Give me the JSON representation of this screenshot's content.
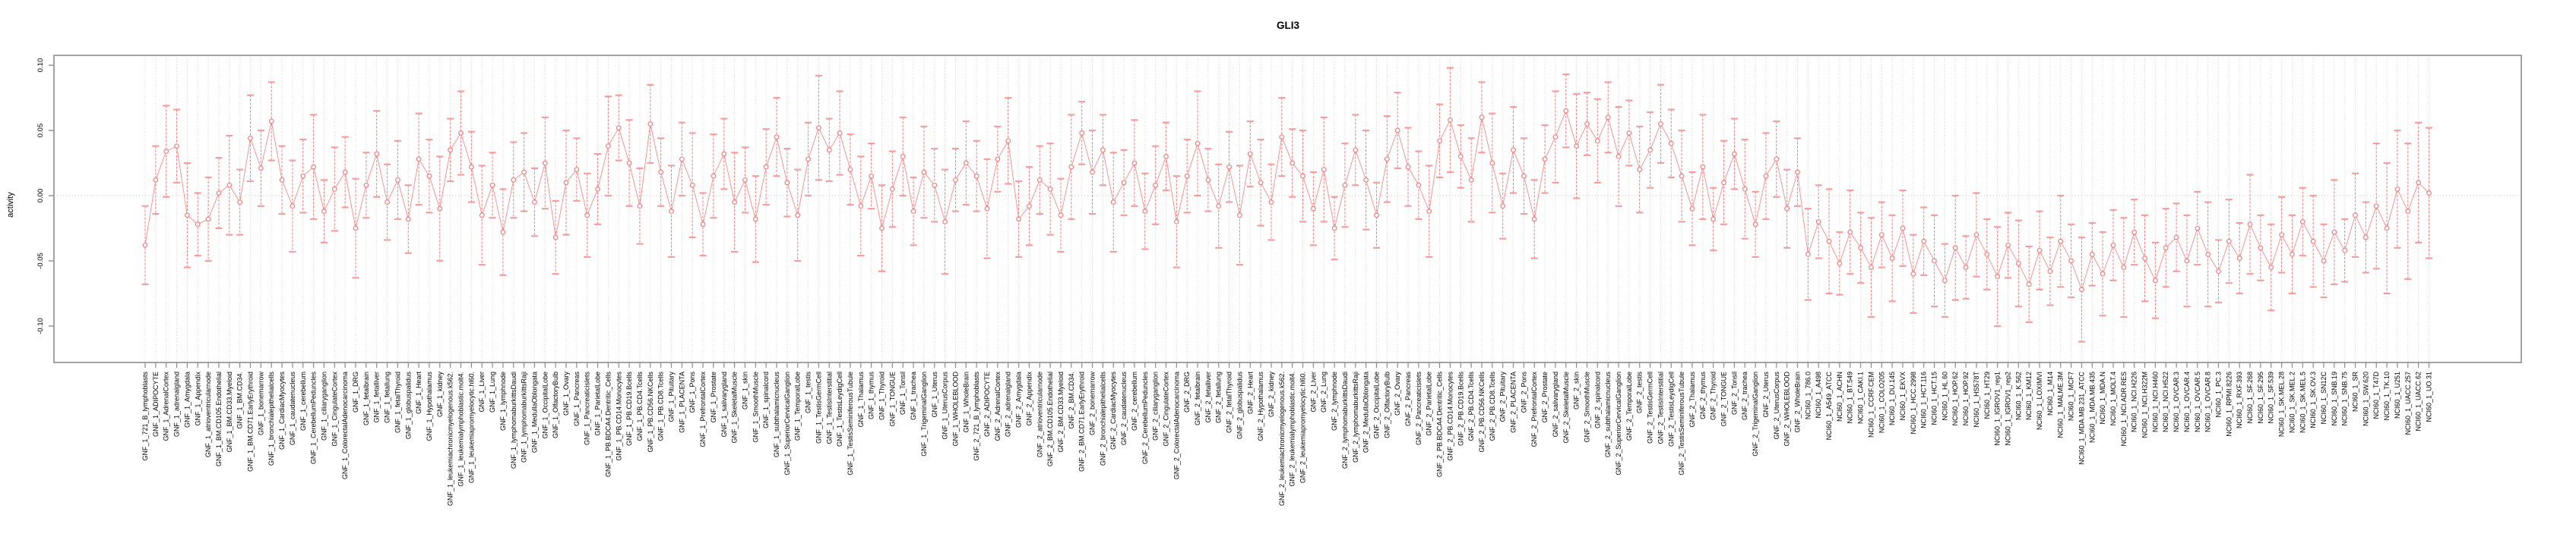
{
  "title": "GLI3",
  "y_axis": {
    "label": "activity",
    "tick_labels": [
      "0.10",
      "0.05",
      "0.00",
      "-0.05",
      "-0.10"
    ],
    "tick_values": [
      0.1,
      0.05,
      0.0,
      -0.05,
      -0.1
    ]
  },
  "colors": {
    "series": "#f08080",
    "caps": "#f29e9e",
    "grid": "#d8d8d8",
    "zero_line": "#c9c9c9",
    "box": "#8c8c8c",
    "tick": "#8c8c8c",
    "text": "#000000"
  },
  "chart_data": {
    "type": "line",
    "subtype": "points-with-error-bars",
    "title": "GLI3",
    "xlabel": "",
    "ylabel": "activity",
    "ylim": [
      -0.128,
      0.108
    ],
    "yticks": [
      0.1,
      0.05,
      0.0,
      -0.05,
      -0.1
    ],
    "grid": "vertical dotted gridline at every category; dotted horizontal line at 0",
    "legend_position": "none",
    "marker": "open-circle",
    "series_color": "#f08080",
    "n_categories": 218,
    "categories": [
      "GNF_1_721_B_lymphoblasts",
      "GNF_1_ADIPOCYTE",
      "GNF_1_AdrenalCortex",
      "GNF_1_adrenalgland",
      "GNF_1_Amygdala",
      "GNF_1_Appendix",
      "GNF_1_atrioventricularnode",
      "GNF_1_BM.CD105.Endothelial",
      "GNF_1_BM.CD33.Myeloid",
      "GNF_1_BM.CD34.",
      "GNF_1_BM.CD71.EarlyErythroid",
      "GNF_1_bonemarrow",
      "GNF_1_bronchialepithelialcells",
      "GNF_1_CardiacMyocytes",
      "GNF_1_caudatenucleus",
      "GNF_1_cerebellum",
      "GNF_1_CerebellumPeduncles",
      "GNF_1_ciliaryganglion",
      "GNF_1_CingulateCortex",
      "GNF_1_ColorectalAdenocarcinoma",
      "GNF_1_DRG",
      "GNF_1_fetalbrain",
      "GNF_1_fetalliver",
      "GNF_1_fetallung",
      "GNF_1_fetalThyroid",
      "GNF_1_globuspalidus",
      "GNF_1_Heart",
      "GNF_1_Hypothalamus",
      "GNF_1_kidney",
      "GNF_1_leukemiachronicmyelogenous.k562.",
      "GNF_1_leukemialymphoblastic.molt4.",
      "GNF_1_leukemiapromyelocytic.hl60.",
      "GNF_1_Liver",
      "GNF_1_Lung",
      "GNF_1_lymphnode",
      "GNF_1_lymphomaburkittsDaudi",
      "GNF_1_lymphomaburkittsRaji",
      "GNF_1_MedullaOblongata",
      "GNF_1_OccipitalLobe",
      "GNF_1_OlfactoryBulb",
      "GNF_1_Ovary",
      "GNF_1_Pancreas",
      "GNF_1_Pancreaticislets",
      "GNF_1_ParietalLobe",
      "GNF_1_PB.BDCA4.Dentritic_Cells",
      "GNF_1_PB.CD14.Monocytes",
      "GNF_1_PB.CD19.Bcells",
      "GNF_1_PB.CD4.Tcells",
      "GNF_1_PB.CD56.NKCells",
      "GNF_1_PB.CD8.Tcells",
      "GNF_1_Pituitary",
      "GNF_1_PLACENTA",
      "GNF_1_Pons",
      "GNF_1_PrefrontalCortex",
      "GNF_1_Prostate",
      "GNF_1_salivarygland",
      "GNF_1_SkeletalMuscle",
      "GNF_1_skin",
      "GNF_1_SmoothMuscle",
      "GNF_1_spinalcord",
      "GNF_1_subthalamicnucleus",
      "GNF_1_SuperiorCervicalGanglion",
      "GNF_1_TemporalLobe",
      "GNF_1_testis",
      "GNF_1_TestisGermCell",
      "GNF_1_TestisInterstitial",
      "GNF_1_TestisLeydigCell",
      "GNF_1_TestisSeminiferousTubule",
      "GNF_1_Thalamus",
      "GNF_1_thymus",
      "GNF_1_Thyroid",
      "GNF_1_TONGUE",
      "GNF_1_Tonsil",
      "GNF_1_trachea",
      "GNF_1_TrigeminalGanglion",
      "GNF_1_Uterus",
      "GNF_1_UterusCorpus",
      "GNF_1_WHOLEBLOOD",
      "GNF_1_WholeBrain",
      "GNF_2_721_B_lymphoblasts",
      "GNF_2_ADIPOCYTE",
      "GNF_2_AdrenalCortex",
      "GNF_2_adrenalgland",
      "GNF_2_Amygdala",
      "GNF_2_Appendix",
      "GNF_2_atrioventricularnode",
      "GNF_2_BM.CD105.Endothelial",
      "GNF_2_BM.CD33.Myeloid",
      "GNF_2_BM.CD34.",
      "GNF_2_BM.CD71.EarlyErythroid",
      "GNF_2_bonemarrow",
      "GNF_2_bronchialepithelialcells",
      "GNF_2_CardiacMyocytes",
      "GNF_2_caudatenucleus",
      "GNF_2_cerebellum",
      "GNF_2_CerebellumPeduncles",
      "GNF_2_ciliaryganglion",
      "GNF_2_CingulateCortex",
      "GNF_2_ColorectalAdenocarcinoma",
      "GNF_2_DRG",
      "GNF_2_fetalbrain",
      "GNF_2_fetalliver",
      "GNF_2_fetallung",
      "GNF_2_fetalThyroid",
      "GNF_2_globuspalidus",
      "GNF_2_Heart",
      "GNF_2_Hypothalamus",
      "GNF_2_kidney",
      "GNF_2_leukemiachronicmyelogenous.k562.",
      "GNF_2_leukemialymphoblastic.molt4.",
      "GNF_2_leukemiapromyelocytic.hl60.",
      "GNF_2_Liver",
      "GNF_2_Lung",
      "GNF_2_lymphnode",
      "GNF_2_lymphomaburkittsDaudi",
      "GNF_2_lymphomaburkittsRaji",
      "GNF_2_MedullaOblongata",
      "GNF_2_OccipitalLobe",
      "GNF_2_OlfactoryBulb",
      "GNF_2_Ovary",
      "GNF_2_Pancreas",
      "GNF_2_Pancreaticislets",
      "GNF_2_ParietalLobe",
      "GNF_2_PB.BDCA4.Dentritic_Cells",
      "GNF_2_PB.CD14.Monocytes",
      "GNF_2_PB.CD19.Bcells",
      "GNF_2_PB.CD4.Tcells",
      "GNF_2_PB.CD56.NKCells",
      "GNF_2_PB.CD8.Tcells",
      "GNF_2_Pituitary",
      "GNF_2_PLACENTA",
      "GNF_2_Pons",
      "GNF_2_PrefrontalCortex",
      "GNF_2_Prostate",
      "GNF_2_salivarygland",
      "GNF_2_SkeletalMuscle",
      "GNF_2_skin",
      "GNF_2_SmoothMuscle",
      "GNF_2_spinalcord",
      "GNF_2_subthalamicnucleus",
      "GNF_2_SuperiorCervicalGanglion",
      "GNF_2_TemporalLobe",
      "GNF_2_testis",
      "GNF_2_TestisGermCell",
      "GNF_2_TestisInterstitial",
      "GNF_2_TestisLeydigCell",
      "GNF_2_TestisSeminiferousTubule",
      "GNF_2_Thalamus",
      "GNF_2_thymus",
      "GNF_2_Thyroid",
      "GNF_2_TONGUE",
      "GNF_2_Tonsil",
      "GNF_2_trachea",
      "GNF_2_TrigeminalGanglion",
      "GNF_2_Uterus",
      "GNF_2_UterusCorpus",
      "GNF_2_WHOLEBLOOD",
      "GNF_2_WholeBrain",
      "NCI60_1_786.0",
      "NCI60_1_A498",
      "NCI60_1_A549_ATCC",
      "NCI60_1_ACHN",
      "NCI60_1_BT.549",
      "NCI60_1_CAKI.1",
      "NCI60_1_CCRF.CEM",
      "NCI60_1_COLO205",
      "NCI60_1_DU.145",
      "NCI60_1_EKVX",
      "NCI60_1_HCC.2998",
      "NCI60_1_HCT.116",
      "NCI60_1_HCT.15",
      "NCI60_1_HL.60",
      "NCI60_1_HOP.62",
      "NCI60_1_HOP.92",
      "NCI60_1_HS578T",
      "NCI60_1_HT29",
      "NCI60_1_IGROV1_rep1",
      "NCI60_1_IGROV1_rep2",
      "NCI60_1_K.562",
      "NCI60_1_KM12",
      "NCI60_1_LOXIMVI",
      "NCI60_1_M14",
      "NCI60_1_MALME.3M",
      "NCI60_1_MCF7",
      "NCI60_1_MDA.MB.231_ATCC",
      "NCI60_1_MDA.MB.435",
      "NCI60_1_MDA.N",
      "NCI60_1_MOLT.4",
      "NCI60_1_NCI.ADR.RES",
      "NCI60_1_NCI.H226",
      "NCI60_1_NCI.H322M",
      "NCI60_1_NCI.H460",
      "NCI60_1_NCI.H522",
      "NCI60_1_OVCAR.3",
      "NCI60_1_OVCAR.4",
      "NCI60_1_OVCAR.5",
      "NCI60_1_OVCAR.8",
      "NCI60_1_PC.3",
      "NCI60_1_RPMI.8226",
      "NCI60_1_RXF.393",
      "NCI60_1_SF.268",
      "NCI60_1_SF.295",
      "NCI60_1_SF.539",
      "NCI60_1_SK.MEL.28",
      "NCI60_1_SK.MEL.2",
      "NCI60_1_SK.MEL.5",
      "NCI60_1_SK.OV.3",
      "NCI60_1_SN12C",
      "NCI60_1_SNB.19",
      "NCI60_1_SNB.75",
      "NCI60_1_SR",
      "NCI60_1_SW.620",
      "NCI60_1_T47D",
      "NCI60_1_TK.10",
      "NCI60_1_U251",
      "NCI60_1_UACC.257",
      "NCI60_1_UACC.62",
      "NCI60_1_UO.31"
    ],
    "values": [
      -0.038,
      0.012,
      0.034,
      0.038,
      -0.015,
      -0.022,
      -0.018,
      0.002,
      0.008,
      -0.005,
      0.044,
      0.021,
      0.057,
      0.012,
      -0.008,
      0.015,
      0.022,
      -0.012,
      0.005,
      0.018,
      -0.025,
      0.008,
      0.032,
      -0.005,
      0.012,
      -0.018,
      0.028,
      0.015,
      -0.01,
      0.035,
      0.048,
      0.022,
      -0.015,
      0.008,
      -0.028,
      0.012,
      0.018,
      -0.005,
      0.025,
      -0.032,
      0.01,
      0.02,
      -0.015,
      0.005,
      0.038,
      0.052,
      0.025,
      -0.008,
      0.055,
      0.018,
      -0.012,
      0.028,
      0.008,
      -0.022,
      0.015,
      0.032,
      -0.005,
      0.012,
      -0.018,
      0.022,
      0.045,
      0.01,
      -0.015,
      0.028,
      0.052,
      0.035,
      0.048,
      0.02,
      -0.008,
      0.015,
      -0.025,
      0.005,
      0.03,
      -0.012,
      0.018,
      0.008,
      -0.02,
      0.012,
      0.025,
      0.015,
      -0.01,
      0.028,
      0.042,
      -0.018,
      -0.008,
      0.012,
      0.005,
      -0.015,
      0.022,
      0.048,
      0.018,
      0.035,
      -0.005,
      0.01,
      0.025,
      -0.012,
      0.008,
      0.03,
      -0.02,
      0.015,
      0.04,
      0.012,
      -0.008,
      0.022,
      -0.015,
      0.032,
      0.01,
      -0.005,
      0.045,
      0.025,
      0.015,
      -0.01,
      0.02,
      -0.025,
      0.008,
      0.035,
      0.012,
      -0.015,
      0.028,
      0.05,
      0.022,
      0.008,
      -0.012,
      0.042,
      0.058,
      0.03,
      0.012,
      0.06,
      0.025,
      -0.008,
      0.035,
      0.015,
      -0.018,
      0.028,
      0.045,
      0.065,
      0.038,
      0.055,
      0.042,
      0.06,
      0.03,
      0.048,
      0.02,
      0.035,
      0.055,
      0.04,
      0.015,
      -0.01,
      0.022,
      -0.018,
      0.01,
      0.032,
      0.005,
      -0.022,
      0.015,
      0.028,
      -0.01,
      0.018,
      -0.045,
      -0.02,
      -0.035,
      -0.052,
      -0.028,
      -0.04,
      -0.055,
      -0.03,
      -0.048,
      -0.025,
      -0.06,
      -0.035,
      -0.05,
      -0.065,
      -0.04,
      -0.055,
      -0.03,
      -0.045,
      -0.062,
      -0.038,
      -0.052,
      -0.068,
      -0.042,
      -0.058,
      -0.035,
      -0.05,
      -0.072,
      -0.045,
      -0.06,
      -0.038,
      -0.055,
      -0.028,
      -0.048,
      -0.065,
      -0.04,
      -0.032,
      -0.05,
      -0.025,
      -0.045,
      -0.058,
      -0.035,
      -0.048,
      -0.022,
      -0.04,
      -0.055,
      -0.03,
      -0.045,
      -0.02,
      -0.035,
      -0.05,
      -0.028,
      -0.042,
      -0.015,
      -0.032,
      -0.008,
      -0.025,
      0.005,
      -0.012,
      0.01,
      0.002
    ],
    "se": [
      0.03,
      0.026,
      0.035,
      0.028,
      0.04,
      0.024,
      0.032,
      0.027,
      0.038,
      0.025,
      0.033,
      0.029,
      0.03,
      0.026,
      0.035,
      0.028,
      0.04,
      0.024,
      0.032,
      0.027,
      0.038,
      0.025,
      0.033,
      0.029,
      0.03,
      0.026,
      0.035,
      0.028,
      0.04,
      0.024,
      0.032,
      0.027,
      0.038,
      0.025,
      0.033,
      0.029,
      0.03,
      0.026,
      0.035,
      0.028,
      0.04,
      0.024,
      0.032,
      0.027,
      0.038,
      0.025,
      0.033,
      0.029,
      0.03,
      0.026,
      0.035,
      0.028,
      0.04,
      0.024,
      0.032,
      0.027,
      0.038,
      0.025,
      0.033,
      0.029,
      0.03,
      0.026,
      0.035,
      0.028,
      0.04,
      0.024,
      0.032,
      0.027,
      0.038,
      0.025,
      0.033,
      0.029,
      0.03,
      0.026,
      0.035,
      0.028,
      0.04,
      0.024,
      0.032,
      0.027,
      0.038,
      0.025,
      0.033,
      0.029,
      0.03,
      0.026,
      0.035,
      0.028,
      0.04,
      0.024,
      0.032,
      0.027,
      0.038,
      0.025,
      0.033,
      0.029,
      0.03,
      0.026,
      0.035,
      0.028,
      0.04,
      0.024,
      0.032,
      0.027,
      0.038,
      0.025,
      0.033,
      0.029,
      0.03,
      0.026,
      0.035,
      0.028,
      0.04,
      0.024,
      0.032,
      0.027,
      0.038,
      0.025,
      0.033,
      0.029,
      0.03,
      0.026,
      0.035,
      0.028,
      0.04,
      0.024,
      0.032,
      0.027,
      0.038,
      0.025,
      0.033,
      0.029,
      0.03,
      0.026,
      0.035,
      0.028,
      0.04,
      0.024,
      0.032,
      0.027,
      0.038,
      0.025,
      0.033,
      0.029,
      0.03,
      0.026,
      0.035,
      0.028,
      0.04,
      0.024,
      0.032,
      0.027,
      0.038,
      0.025,
      0.033,
      0.029,
      0.03,
      0.026,
      0.035,
      0.028,
      0.04,
      0.024,
      0.032,
      0.027,
      0.038,
      0.025,
      0.033,
      0.029,
      0.03,
      0.026,
      0.035,
      0.028,
      0.04,
      0.024,
      0.032,
      0.027,
      0.038,
      0.025,
      0.033,
      0.029,
      0.03,
      0.026,
      0.035,
      0.028,
      0.04,
      0.024,
      0.032,
      0.027,
      0.038,
      0.025,
      0.033,
      0.029,
      0.03,
      0.026,
      0.035,
      0.028,
      0.04,
      0.024,
      0.032,
      0.027,
      0.038,
      0.025,
      0.033,
      0.029,
      0.03,
      0.026,
      0.035,
      0.028,
      0.04,
      0.024,
      0.032,
      0.027,
      0.048,
      0.05,
      0.045,
      0.052,
      0.046,
      0.05
    ]
  }
}
